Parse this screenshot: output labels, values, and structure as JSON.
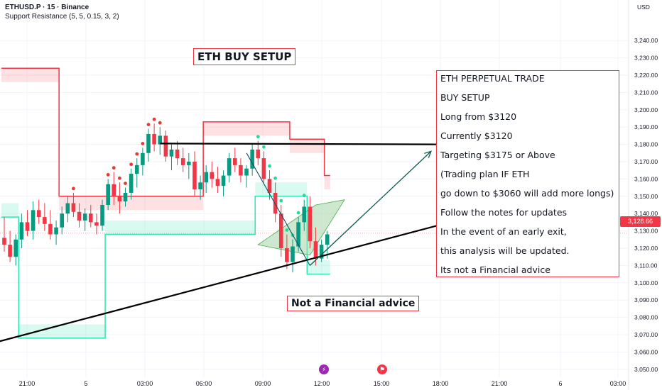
{
  "header": {
    "symbol_line": "ETHUSD.P · 15 · Binance",
    "indicator_line": "Support Resistance (5, 5, 0.15, 3, 2)",
    "currency": "USD"
  },
  "title": "ETH BUY SETUP",
  "disclaimer": "Not a Financial advice",
  "notes": [
    "ETH PERPETUAL TRADE",
    "BUY SETUP",
    "Long from $3120",
    "Currently $3120",
    "Targeting $3175 or Above",
    "(Trading plan IF ETH",
    "go down to $3060 will add more longs)",
    "Follow the notes for updates",
    "In the event of an early exit,",
    "this analysis will be updated.",
    "Its not a Financial advice"
  ],
  "current_price_label": "3,128.66",
  "colors": {
    "up": "#089981",
    "down": "#f23645",
    "resistance": "#f23645",
    "support": "#2ee6b0",
    "trendline": "#000000",
    "arrow": "#0b5c4f",
    "channel_fill": "#a5d6a7"
  },
  "event_icons": [
    "lightning-icon",
    "us-flag-icon"
  ],
  "chart_data": {
    "type": "candlestick",
    "symbol": "ETHUSD.P",
    "timeframe": "15",
    "exchange": "Binance",
    "ylim": [
      3045,
      3245
    ],
    "y_ticks": [
      "3,050.00",
      "3,060.00",
      "3,070.00",
      "3,080.00",
      "3,090.00",
      "3,100.00",
      "3,110.00",
      "3,120.00",
      "3,130.00",
      "3,140.00",
      "3,150.00",
      "3,160.00",
      "3,170.00",
      "3,180.00",
      "3,190.00",
      "3,200.00",
      "3,210.00",
      "3,220.00",
      "3,230.00",
      "3,240.00"
    ],
    "x_ticks": [
      "21:00",
      "5",
      "03:00",
      "06:00",
      "09:00",
      "12:00",
      "15:00",
      "18:00",
      "21:00",
      "6",
      "03:00"
    ],
    "current_price": 3128.66,
    "candles": [
      [
        3126,
        3138,
        3118,
        3122
      ],
      [
        3122,
        3130,
        3112,
        3115
      ],
      [
        3115,
        3128,
        3110,
        3125
      ],
      [
        3125,
        3140,
        3120,
        3135
      ],
      [
        3135,
        3142,
        3127,
        3130
      ],
      [
        3130,
        3147,
        3125,
        3142
      ],
      [
        3142,
        3148,
        3134,
        3138
      ],
      [
        3138,
        3146,
        3130,
        3134
      ],
      [
        3134,
        3142,
        3125,
        3128
      ],
      [
        3128,
        3136,
        3122,
        3132
      ],
      [
        3132,
        3144,
        3128,
        3140
      ],
      [
        3140,
        3150,
        3135,
        3146
      ],
      [
        3146,
        3152,
        3138,
        3141
      ],
      [
        3141,
        3146,
        3132,
        3136
      ],
      [
        3136,
        3143,
        3130,
        3140
      ],
      [
        3140,
        3145,
        3132,
        3135
      ],
      [
        3135,
        3140,
        3128,
        3133
      ],
      [
        3133,
        3148,
        3130,
        3145
      ],
      [
        3145,
        3160,
        3142,
        3157
      ],
      [
        3157,
        3164,
        3145,
        3150
      ],
      [
        3150,
        3158,
        3140,
        3147
      ],
      [
        3147,
        3155,
        3144,
        3152
      ],
      [
        3152,
        3166,
        3148,
        3163
      ],
      [
        3163,
        3172,
        3155,
        3168
      ],
      [
        3168,
        3178,
        3162,
        3175
      ],
      [
        3175,
        3189,
        3170,
        3186
      ],
      [
        3186,
        3192,
        3176,
        3180
      ],
      [
        3180,
        3190,
        3174,
        3185
      ],
      [
        3185,
        3188,
        3170,
        3173
      ],
      [
        3173,
        3180,
        3165,
        3177
      ],
      [
        3177,
        3182,
        3168,
        3172
      ],
      [
        3172,
        3178,
        3164,
        3168
      ],
      [
        3168,
        3175,
        3160,
        3170
      ],
      [
        3170,
        3176,
        3150,
        3154
      ],
      [
        3154,
        3162,
        3148,
        3158
      ],
      [
        3158,
        3168,
        3152,
        3164
      ],
      [
        3164,
        3170,
        3155,
        3160
      ],
      [
        3160,
        3167,
        3152,
        3156
      ],
      [
        3156,
        3165,
        3150,
        3162
      ],
      [
        3162,
        3175,
        3158,
        3172
      ],
      [
        3172,
        3178,
        3164,
        3168
      ],
      [
        3168,
        3172,
        3158,
        3162
      ],
      [
        3162,
        3168,
        3155,
        3166
      ],
      [
        3166,
        3180,
        3162,
        3177
      ],
      [
        3177,
        3182,
        3168,
        3172
      ],
      [
        3172,
        3176,
        3158,
        3160
      ],
      [
        3160,
        3165,
        3148,
        3152
      ],
      [
        3152,
        3158,
        3135,
        3140
      ],
      [
        3140,
        3145,
        3115,
        3120
      ],
      [
        3120,
        3128,
        3108,
        3112
      ],
      [
        3112,
        3125,
        3106,
        3121
      ],
      [
        3121,
        3138,
        3118,
        3135
      ],
      [
        3135,
        3148,
        3130,
        3144
      ],
      [
        3144,
        3150,
        3120,
        3124
      ],
      [
        3124,
        3132,
        3110,
        3114
      ],
      [
        3114,
        3125,
        3112,
        3122
      ],
      [
        3122,
        3130,
        3114,
        3128
      ]
    ],
    "resistance_level": [
      3224,
      3224,
      3224,
      3224,
      3224,
      3224,
      3224,
      3224,
      3224,
      3224,
      3150,
      3150,
      3150,
      3150,
      3150,
      3150,
      3150,
      3150,
      3150,
      3150,
      3150,
      3150,
      3150,
      3150,
      3150,
      3150,
      3150,
      3150,
      3150,
      3150,
      3150,
      3150,
      3150,
      3150,
      3150,
      3193,
      3193,
      3193,
      3193,
      3193,
      3193,
      3193,
      3193,
      3193,
      3193,
      3193,
      3193,
      3193,
      3193,
      3193,
      3183,
      3183,
      3183,
      3183,
      3183,
      3183,
      3162
    ],
    "support_level": [
      3138,
      3138,
      3138,
      3068,
      3068,
      3068,
      3068,
      3068,
      3068,
      3068,
      3068,
      3068,
      3068,
      3068,
      3068,
      3068,
      3068,
      3068,
      3128,
      3128,
      3128,
      3128,
      3128,
      3128,
      3128,
      3128,
      3128,
      3128,
      3128,
      3128,
      3128,
      3128,
      3128,
      3128,
      3128,
      3128,
      3128,
      3128,
      3128,
      3128,
      3128,
      3128,
      3128,
      3128,
      3150,
      3150,
      3150,
      3150,
      3150,
      3150,
      3150,
      3150,
      3150,
      3105,
      3105,
      3105,
      3105
    ],
    "red_dot_candles": [
      12,
      18,
      19,
      20,
      21,
      22,
      23,
      24,
      25,
      26,
      27
    ],
    "green_dot_candles": [
      44,
      45,
      46,
      47,
      48,
      49,
      50,
      51,
      52
    ],
    "resistance_line": {
      "from": [
        27,
        3180.5
      ],
      "to": [
        75,
        3180
      ]
    },
    "support_trendline": {
      "from": [
        -1,
        3066
      ],
      "to": [
        75,
        3133
      ]
    },
    "channel_fill": {
      "points": [
        [
          44,
          3122
        ],
        [
          54,
          3145
        ],
        [
          59,
          3148
        ],
        [
          53,
          3116
        ]
      ]
    },
    "channel_line": {
      "from": [
        42,
        3175
      ],
      "to": [
        53,
        3110
      ]
    },
    "target_arrow": {
      "from": [
        53,
        3110
      ],
      "to": [
        74,
        3176
      ]
    }
  }
}
